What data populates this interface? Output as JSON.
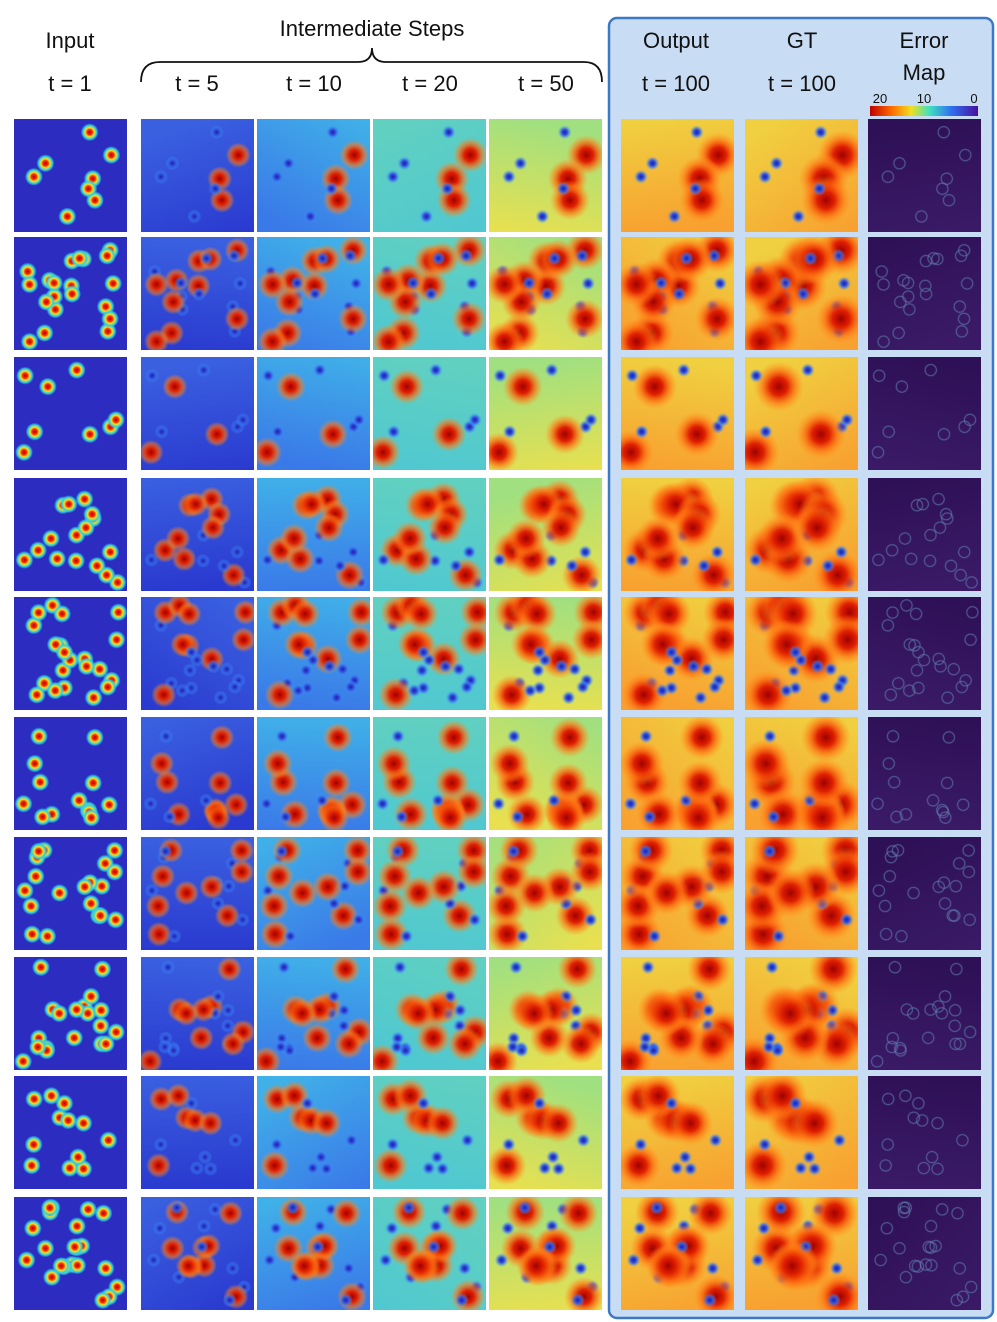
{
  "header": {
    "input": {
      "title": "Input",
      "time": "t = 1"
    },
    "intermediate": {
      "title": "Intermediate Steps",
      "times": [
        "t = 5",
        "t = 10",
        "t = 20",
        "t = 50"
      ]
    },
    "output": {
      "title": "Output",
      "time": "t = 100"
    },
    "gt": {
      "title": "GT",
      "time": "t = 100"
    },
    "error": {
      "title": "Error",
      "title2": "Map"
    }
  },
  "colorbar": {
    "ticks": [
      20,
      10,
      0
    ]
  }
}
